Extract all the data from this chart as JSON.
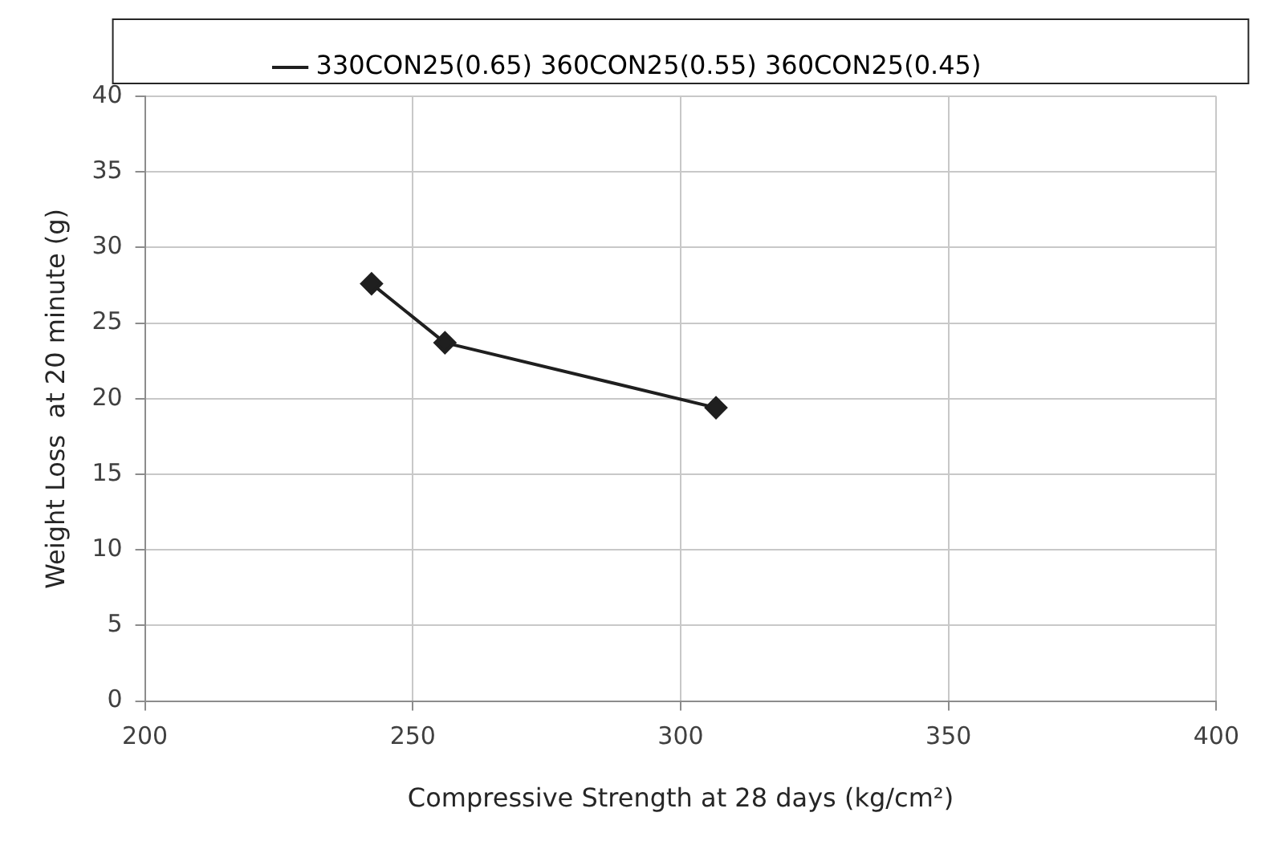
{
  "chart_data": {
    "type": "line",
    "xlabel": "Compressive Strength at 28 days (kg/cm²)",
    "ylabel": "Weight Loss  at 20 minute (g)",
    "x": [
      242.3,
      256.0,
      306.6
    ],
    "series": [
      {
        "name": "330CON25(0.65) 360CON25(0.55) 360CON25(0.45)",
        "color": "#1f1f1f",
        "values": [
          27.6,
          23.7,
          19.4
        ]
      }
    ],
    "xlim": [
      200,
      400
    ],
    "xticks": [
      200,
      250,
      300,
      350,
      400
    ],
    "ylim": [
      0,
      40
    ],
    "yticks": [
      0,
      5,
      10,
      15,
      20,
      25,
      30,
      35,
      40
    ],
    "grid": true,
    "legend": "top",
    "marker": "diamond",
    "line_style": "solid"
  }
}
